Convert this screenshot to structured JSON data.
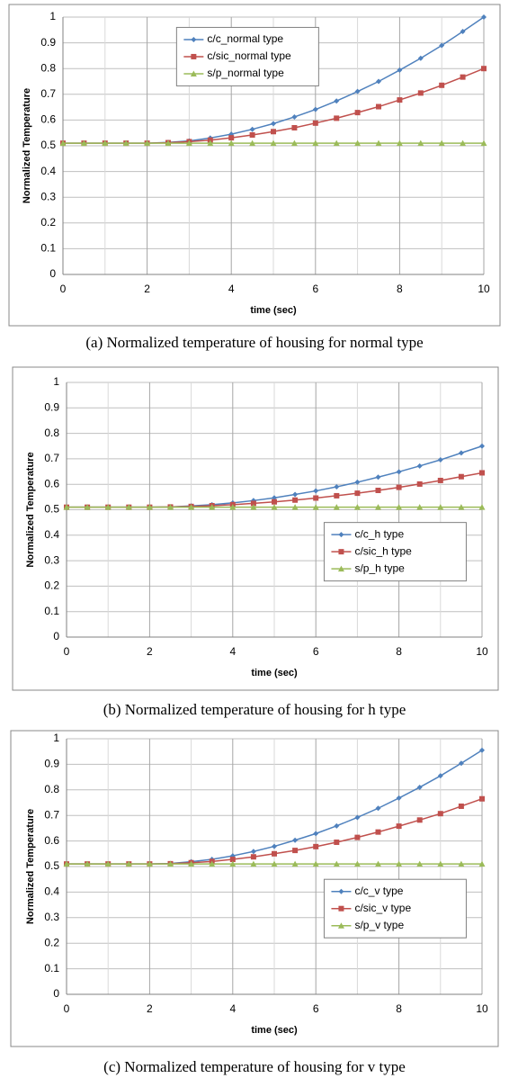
{
  "chart_data": [
    {
      "type": "line",
      "caption": "(a) Normalized temperature of housing for normal type",
      "xlabel": "time (sec)",
      "ylabel": "Normalized Temperature",
      "x": [
        0,
        0.5,
        1,
        1.5,
        2,
        2.5,
        3,
        3.5,
        4,
        4.5,
        5,
        5.5,
        6,
        6.5,
        7,
        7.5,
        8,
        8.5,
        9,
        9.5,
        10
      ],
      "series": [
        {
          "name": "c/c_normal type",
          "color": "#4f81bd",
          "marker": "diamond",
          "values": [
            0.51,
            0.51,
            0.51,
            0.51,
            0.51,
            0.513,
            0.519,
            0.53,
            0.545,
            0.564,
            0.586,
            0.612,
            0.641,
            0.674,
            0.711,
            0.75,
            0.794,
            0.84,
            0.89,
            0.944,
            1.0
          ]
        },
        {
          "name": "c/sic_normal type",
          "color": "#c0504d",
          "marker": "square",
          "values": [
            0.51,
            0.51,
            0.51,
            0.51,
            0.51,
            0.512,
            0.516,
            0.522,
            0.531,
            0.542,
            0.555,
            0.57,
            0.588,
            0.607,
            0.629,
            0.652,
            0.678,
            0.705,
            0.735,
            0.767,
            0.8
          ]
        },
        {
          "name": "s/p_normal type",
          "color": "#9bbb59",
          "marker": "triangle",
          "values": [
            0.51,
            0.51,
            0.51,
            0.51,
            0.51,
            0.51,
            0.51,
            0.51,
            0.51,
            0.51,
            0.51,
            0.51,
            0.51,
            0.51,
            0.51,
            0.51,
            0.51,
            0.51,
            0.51,
            0.51,
            0.51
          ]
        }
      ],
      "xlim": [
        0,
        10
      ],
      "xticks": [
        0,
        2,
        4,
        6,
        8,
        10
      ],
      "xminorticks": [
        1,
        3,
        5,
        7,
        9
      ],
      "ylim": [
        0,
        1
      ],
      "yticks": [
        0,
        0.1,
        0.2,
        0.3,
        0.4,
        0.5,
        0.6,
        0.7,
        0.8,
        0.9,
        1
      ],
      "grid": true,
      "legend": "upper center"
    },
    {
      "type": "line",
      "caption": "(b) Normalized temperature of housing for h type",
      "xlabel": "time (sec)",
      "ylabel": "Normalized Temperature",
      "x": [
        0,
        0.5,
        1,
        1.5,
        2,
        2.5,
        3,
        3.5,
        4,
        4.5,
        5,
        5.5,
        6,
        6.5,
        7,
        7.5,
        8,
        8.5,
        9,
        9.5,
        10
      ],
      "series": [
        {
          "name": "c/c_h type",
          "color": "#4f81bd",
          "marker": "diamond",
          "values": [
            0.51,
            0.51,
            0.51,
            0.51,
            0.51,
            0.511,
            0.515,
            0.52,
            0.527,
            0.536,
            0.547,
            0.56,
            0.574,
            0.59,
            0.608,
            0.628,
            0.649,
            0.672,
            0.696,
            0.723,
            0.75
          ]
        },
        {
          "name": "c/sic_h type",
          "color": "#c0504d",
          "marker": "square",
          "values": [
            0.51,
            0.51,
            0.51,
            0.51,
            0.51,
            0.511,
            0.513,
            0.516,
            0.52,
            0.525,
            0.531,
            0.538,
            0.546,
            0.555,
            0.565,
            0.576,
            0.588,
            0.601,
            0.615,
            0.63,
            0.645
          ]
        },
        {
          "name": "s/p_h type",
          "color": "#9bbb59",
          "marker": "triangle",
          "values": [
            0.51,
            0.51,
            0.51,
            0.51,
            0.51,
            0.51,
            0.51,
            0.51,
            0.51,
            0.51,
            0.51,
            0.51,
            0.51,
            0.51,
            0.51,
            0.51,
            0.51,
            0.51,
            0.51,
            0.51,
            0.51
          ]
        }
      ],
      "xlim": [
        0,
        10
      ],
      "xticks": [
        0,
        2,
        4,
        6,
        8,
        10
      ],
      "xminorticks": [
        1,
        3,
        5,
        7,
        9
      ],
      "ylim": [
        0,
        1
      ],
      "yticks": [
        0,
        0.1,
        0.2,
        0.3,
        0.4,
        0.5,
        0.6,
        0.7,
        0.8,
        0.9,
        1
      ],
      "grid": true,
      "legend": "center right"
    },
    {
      "type": "line",
      "caption": "(c) Normalized temperature of housing for v type",
      "xlabel": "time (sec)",
      "ylabel": "Normalized Temperature",
      "x": [
        0,
        0.5,
        1,
        1.5,
        2,
        2.5,
        3,
        3.5,
        4,
        4.5,
        5,
        5.5,
        6,
        6.5,
        7,
        7.5,
        8,
        8.5,
        9,
        9.5,
        10
      ],
      "series": [
        {
          "name": "c/c_v type",
          "color": "#4f81bd",
          "marker": "diamond",
          "values": [
            0.51,
            0.51,
            0.51,
            0.51,
            0.51,
            0.512,
            0.519,
            0.528,
            0.542,
            0.559,
            0.579,
            0.603,
            0.629,
            0.659,
            0.692,
            0.728,
            0.768,
            0.81,
            0.855,
            0.904,
            0.955
          ]
        },
        {
          "name": "c/sic_v type",
          "color": "#c0504d",
          "marker": "square",
          "values": [
            0.51,
            0.51,
            0.51,
            0.51,
            0.51,
            0.511,
            0.515,
            0.52,
            0.528,
            0.538,
            0.55,
            0.563,
            0.578,
            0.595,
            0.614,
            0.635,
            0.658,
            0.682,
            0.707,
            0.736,
            0.765
          ]
        },
        {
          "name": "s/p_v type",
          "color": "#9bbb59",
          "marker": "triangle",
          "values": [
            0.51,
            0.51,
            0.51,
            0.51,
            0.51,
            0.51,
            0.51,
            0.51,
            0.51,
            0.51,
            0.51,
            0.51,
            0.51,
            0.51,
            0.51,
            0.51,
            0.51,
            0.51,
            0.51,
            0.51,
            0.51
          ]
        }
      ],
      "xlim": [
        0,
        10
      ],
      "xticks": [
        0,
        2,
        4,
        6,
        8,
        10
      ],
      "xminorticks": [
        1,
        3,
        5,
        7,
        9
      ],
      "ylim": [
        0,
        1
      ],
      "yticks": [
        0,
        0.1,
        0.2,
        0.3,
        0.4,
        0.5,
        0.6,
        0.7,
        0.8,
        0.9,
        1
      ],
      "grid": true,
      "legend": "center right"
    }
  ]
}
